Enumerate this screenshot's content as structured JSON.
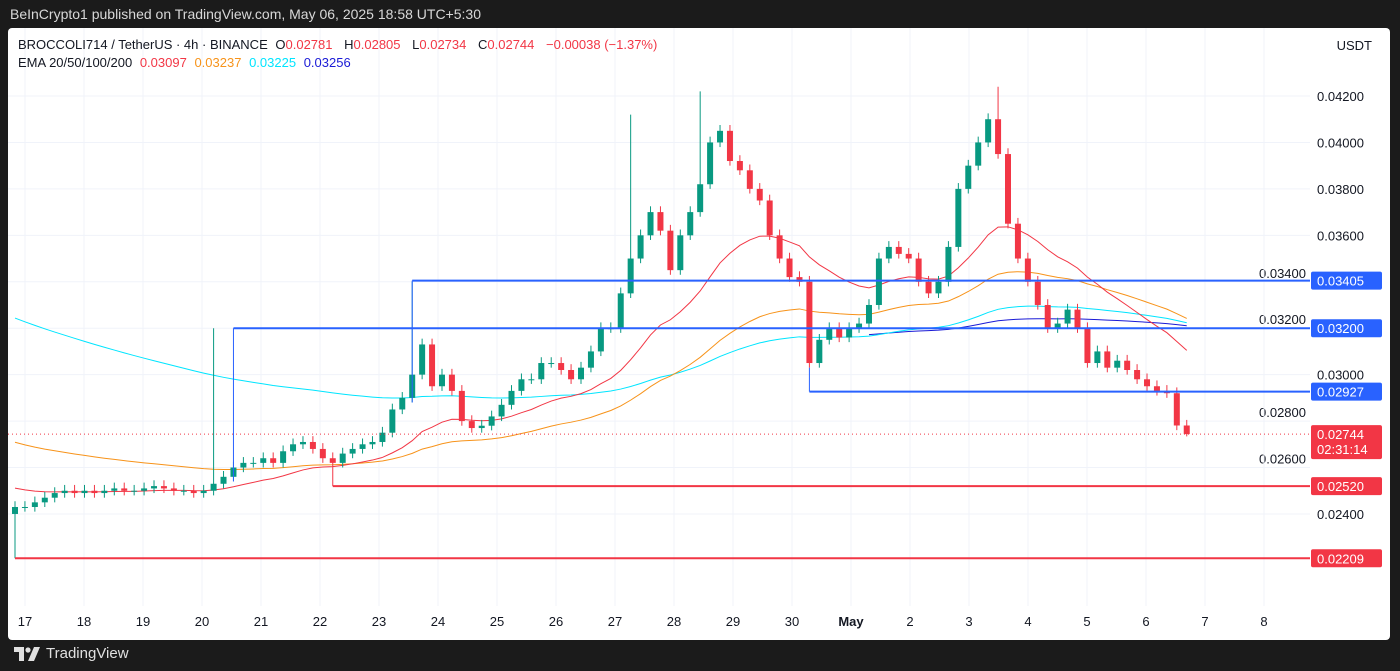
{
  "header": {
    "published": "BeInCrypto1 published on TradingView.com, May 06, 2025 18:58 UTC+5:30"
  },
  "legend": {
    "symbol": "BROCCOLI714 / TetherUS · 4h · BINANCE",
    "o_label": "O",
    "o": "0.02781",
    "h_label": "H",
    "h": "0.02805",
    "l_label": "L",
    "l": "0.02734",
    "c_label": "C",
    "c": "0.02744",
    "change": "−0.00038 (−1.37%)",
    "ema_label": "EMA 20/50/100/200",
    "ema20": "0.03097",
    "ema50": "0.03237",
    "ema100": "0.03225",
    "ema200": "0.03256"
  },
  "footer": {
    "brand": "TradingView"
  },
  "colors": {
    "up": "#089981",
    "down": "#f23645",
    "ema20": "#f23645",
    "ema50": "#f7931a",
    "ema100": "#00e5ff",
    "ema200": "#1a1ad6",
    "support": "#f23645",
    "resistance": "#2962ff"
  },
  "chart_data": {
    "type": "candlestick",
    "unit": "USDT",
    "interval": "4h",
    "ylim": [
      0.0212,
      0.0432
    ],
    "yticks": [
      "0.02400",
      "0.02600",
      "0.02800",
      "0.03000",
      "0.03200",
      "0.03400",
      "0.03600",
      "0.03800",
      "0.04000",
      "0.04200"
    ],
    "xticks": [
      "17",
      "18",
      "19",
      "20",
      "21",
      "22",
      "23",
      "24",
      "25",
      "26",
      "27",
      "28",
      "29",
      "30",
      "May",
      "2",
      "3",
      "4",
      "5",
      "6",
      "7",
      "8"
    ],
    "grid": true,
    "first_open": 0.024,
    "closes": [
      0.0243,
      0.0243,
      0.0245,
      0.0247,
      0.0249,
      0.025,
      0.0249,
      0.025,
      0.0249,
      0.025,
      0.0251,
      0.025,
      0.025,
      0.0251,
      0.0252,
      0.0251,
      0.025,
      0.025,
      0.0249,
      0.025,
      0.0253,
      0.0256,
      0.026,
      0.0262,
      0.0262,
      0.0264,
      0.0262,
      0.0267,
      0.027,
      0.0271,
      0.0268,
      0.0264,
      0.0262,
      0.0266,
      0.0268,
      0.027,
      0.0271,
      0.0275,
      0.0285,
      0.029,
      0.03,
      0.0313,
      0.0295,
      0.03,
      0.0293,
      0.028,
      0.0277,
      0.0278,
      0.0282,
      0.0287,
      0.0293,
      0.0298,
      0.0298,
      0.0305,
      0.0305,
      0.0302,
      0.0298,
      0.0303,
      0.031,
      0.032,
      0.032,
      0.0335,
      0.035,
      0.036,
      0.037,
      0.0362,
      0.0345,
      0.036,
      0.037,
      0.0382,
      0.04,
      0.0405,
      0.0392,
      0.0388,
      0.038,
      0.0375,
      0.036,
      0.035,
      0.0342,
      0.034,
      0.0305,
      0.0315,
      0.032,
      0.0316,
      0.032,
      0.0322,
      0.033,
      0.035,
      0.0355,
      0.0352,
      0.035,
      0.034,
      0.0335,
      0.034,
      0.0355,
      0.038,
      0.039,
      0.04,
      0.041,
      0.0395,
      0.0365,
      0.035,
      0.034,
      0.033,
      0.032,
      0.0322,
      0.0328,
      0.032,
      0.0305,
      0.031,
      0.0303,
      0.0306,
      0.0302,
      0.0298,
      0.0295,
      0.0293,
      0.0292,
      0.02781,
      0.02744
    ],
    "notable_highs": {
      "20": 0.032,
      "40": 0.034,
      "62": 0.0412,
      "69": 0.0422,
      "99": 0.0424
    },
    "last": {
      "open": 0.02781,
      "high": 0.02805,
      "low": 0.02734,
      "close": 0.02744,
      "countdown": "02:31:14"
    },
    "levels": [
      {
        "price": "0.03405",
        "type": "resistance"
      },
      {
        "price": "0.03200",
        "type": "resistance"
      },
      {
        "price": "0.02927",
        "type": "resistance"
      },
      {
        "price": "0.02520",
        "type": "support"
      },
      {
        "price": "0.02209",
        "type": "support"
      }
    ]
  }
}
